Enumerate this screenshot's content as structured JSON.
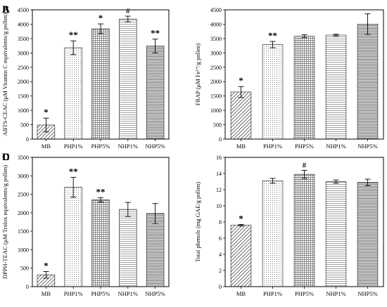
{
  "chart_data": [
    {
      "panel": "A",
      "type": "bar",
      "categories": [
        "MB",
        "PHP1%",
        "PHP5%",
        "NHP1%",
        "NHP5%"
      ],
      "values": [
        490,
        3180,
        3840,
        4180,
        3240
      ],
      "errors": [
        240,
        240,
        170,
        100,
        240
      ],
      "annotations": [
        "*",
        "**",
        "*",
        "#",
        "**"
      ],
      "ylabel": "ABTS-CEAC (μM Vitamin C equivalents/g pollen)",
      "ylim": [
        0,
        4500
      ],
      "yticks": [
        0,
        500,
        1000,
        1500,
        2000,
        2500,
        3000,
        3500,
        4000,
        4500
      ]
    },
    {
      "panel": "B",
      "type": "bar",
      "categories": [
        "MB",
        "PHP1%",
        "PHP5%",
        "NHP1%",
        "NHP5%"
      ],
      "values": [
        1640,
        3290,
        3580,
        3620,
        4000
      ],
      "errors": [
        190,
        110,
        50,
        30,
        360
      ],
      "annotations": [
        "*",
        "**",
        "",
        "",
        ""
      ],
      "ylabel": "FRAP (μM Fe²⁺/g pollen)",
      "ylim": [
        0,
        4500
      ],
      "yticks": [
        0,
        500,
        1000,
        1500,
        2000,
        2500,
        3000,
        3500,
        4000,
        4500
      ]
    },
    {
      "panel": "C",
      "type": "bar",
      "categories": [
        "MB",
        "PHP1%",
        "PHP5%",
        "NHP1%",
        "NHP5%"
      ],
      "values": [
        320,
        2690,
        2350,
        2090,
        1980
      ],
      "errors": [
        90,
        270,
        60,
        190,
        270
      ],
      "annotations": [
        "*",
        "**",
        "**",
        "",
        ""
      ],
      "ylabel": "DPPH-TEAC (μM Trolox equivalents/g pollen)",
      "ylim": [
        0,
        3500
      ],
      "yticks": [
        0,
        500,
        1000,
        1500,
        2000,
        2500,
        3000,
        3500
      ]
    },
    {
      "panel": "D",
      "type": "bar",
      "categories": [
        "MB",
        "PHP1%",
        "PHP5%",
        "NHP1%",
        "NHP5%"
      ],
      "values": [
        7.6,
        13.1,
        13.9,
        13.0,
        12.9
      ],
      "errors": [
        0.1,
        0.3,
        0.5,
        0.2,
        0.4
      ],
      "annotations": [
        "*",
        "",
        "#",
        "",
        ""
      ],
      "ylabel": "Total phenols (mg GAE/g pollen)",
      "ylim": [
        0,
        16
      ],
      "yticks": [
        0,
        2,
        4,
        6,
        8,
        10,
        12,
        14,
        16
      ]
    }
  ]
}
